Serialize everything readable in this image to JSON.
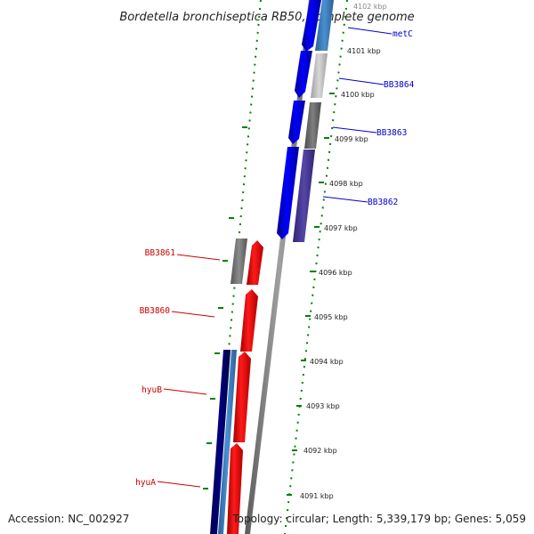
{
  "title": "Bordetella bronchiseptica RB50, complete genome",
  "footer": {
    "accession": "Accession: NC_002927",
    "summary": "Topology: circular; Length: 5,339,179 bp; Genes: 5,059"
  },
  "colors": {
    "forward_label": "#0000cc",
    "reverse_label": "#cc0000",
    "tick_green": "#008000",
    "backbone": "#7a7a7a"
  },
  "scale_labels": [
    "4102 kbp",
    "4101 kbp",
    "4100 kbp",
    "4099 kbp",
    "4098 kbp",
    "4097 kbp",
    "4096 kbp",
    "4095 kbp",
    "4094 kbp",
    "4093 kbp",
    "4092 kbp",
    "4091 kbp"
  ],
  "forward_genes": [
    {
      "label": "metC",
      "color": "#3b7fc4"
    },
    {
      "label": "BB3864",
      "color": "#c0c0c0"
    },
    {
      "label": "BB3863",
      "color": "#6a6a6a"
    },
    {
      "label": "BB3862",
      "color": "#4a3a9a"
    }
  ],
  "reverse_genes": [
    {
      "label": "BB3861",
      "color": "#777777"
    },
    {
      "label": "BB3860",
      "color": "#ff0000"
    },
    {
      "label": "hyuB",
      "color": "#ff0000"
    },
    {
      "label": "hyuA",
      "color": "#ff0000"
    }
  ]
}
